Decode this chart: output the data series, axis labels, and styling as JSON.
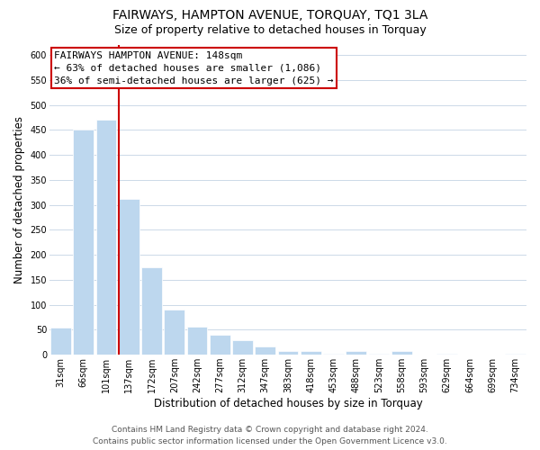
{
  "title": "FAIRWAYS, HAMPTON AVENUE, TORQUAY, TQ1 3LA",
  "subtitle": "Size of property relative to detached houses in Torquay",
  "xlabel": "Distribution of detached houses by size in Torquay",
  "ylabel": "Number of detached properties",
  "bar_labels": [
    "31sqm",
    "66sqm",
    "101sqm",
    "137sqm",
    "172sqm",
    "207sqm",
    "242sqm",
    "277sqm",
    "312sqm",
    "347sqm",
    "383sqm",
    "418sqm",
    "453sqm",
    "488sqm",
    "523sqm",
    "558sqm",
    "593sqm",
    "629sqm",
    "664sqm",
    "699sqm",
    "734sqm"
  ],
  "bar_values": [
    55,
    450,
    470,
    312,
    175,
    90,
    57,
    40,
    30,
    16,
    8,
    8,
    2,
    8,
    2,
    8,
    0,
    2,
    0,
    0,
    2
  ],
  "bar_color": "#bdd7ee",
  "vline_color": "#cc0000",
  "vline_x_idx": 3,
  "annotation_text_line1": "FAIRWAYS HAMPTON AVENUE: 148sqm",
  "annotation_text_line2": "← 63% of detached houses are smaller (1,086)",
  "annotation_text_line3": "36% of semi-detached houses are larger (625) →",
  "annotation_box_facecolor": "#ffffff",
  "annotation_box_edgecolor": "#cc0000",
  "ylim": [
    0,
    620
  ],
  "yticks": [
    0,
    50,
    100,
    150,
    200,
    250,
    300,
    350,
    400,
    450,
    500,
    550,
    600
  ],
  "footer_line1": "Contains HM Land Registry data © Crown copyright and database right 2024.",
  "footer_line2": "Contains public sector information licensed under the Open Government Licence v3.0.",
  "bg_color": "#ffffff",
  "grid_color": "#ccd9e8",
  "title_fontsize": 10,
  "subtitle_fontsize": 9,
  "axis_label_fontsize": 8.5,
  "tick_fontsize": 7,
  "annotation_fontsize": 8,
  "footer_fontsize": 6.5
}
